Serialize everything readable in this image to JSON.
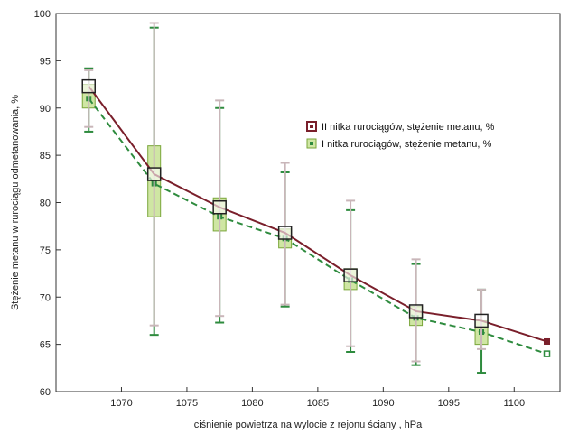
{
  "chart_data": {
    "type": "line",
    "xlabel": "ciśnienie powietrza na wylocie z rejonu ściany , hPa",
    "ylabel": "Stężenie metanu w rurociągu odmetanowania, %",
    "xlim": [
      1065,
      1103.5
    ],
    "ylim": [
      60,
      100
    ],
    "xticks": [
      1070,
      1075,
      1080,
      1085,
      1090,
      1095,
      1100
    ],
    "yticks": [
      60,
      65,
      70,
      75,
      80,
      85,
      90,
      95,
      100
    ],
    "grid": false,
    "legend_position": "right",
    "series": [
      {
        "name": "II nitka rurociągów, stężenie metanu, %",
        "color": "#7a1f2b",
        "line_style": "solid",
        "marker": "square-open",
        "points": [
          {
            "x": 1067.5,
            "y": 92.3,
            "whisker_low": 88.0,
            "whisker_high": 94.0
          },
          {
            "x": 1072.5,
            "y": 83.0,
            "whisker_low": 67.0,
            "whisker_high": 99.0
          },
          {
            "x": 1077.5,
            "y": 79.5,
            "whisker_low": 68.0,
            "whisker_high": 90.8
          },
          {
            "x": 1082.5,
            "y": 76.8,
            "whisker_low": 69.2,
            "whisker_high": 84.2
          },
          {
            "x": 1087.5,
            "y": 72.3,
            "whisker_low": 64.8,
            "whisker_high": 80.2
          },
          {
            "x": 1092.5,
            "y": 68.5,
            "whisker_low": 63.2,
            "whisker_high": 74.0
          },
          {
            "x": 1097.5,
            "y": 67.5,
            "whisker_low": 64.5,
            "whisker_high": 70.8
          },
          {
            "x": 1102.5,
            "y": 65.3
          }
        ]
      },
      {
        "name": "I nitka rurociągów, stężenie metanu, %",
        "color": "#2e8b3e",
        "line_style": "dashed",
        "marker": "square-filled",
        "points": [
          {
            "x": 1067.5,
            "y": 91.0,
            "box_low": 90.0,
            "box_high": 92.5,
            "whisker_low": 87.5,
            "whisker_high": 94.2
          },
          {
            "x": 1072.5,
            "y": 82.0,
            "box_low": 78.5,
            "box_high": 86.0,
            "whisker_low": 66.0,
            "whisker_high": 98.5
          },
          {
            "x": 1077.5,
            "y": 78.5,
            "box_low": 77.0,
            "box_high": 80.5,
            "whisker_low": 67.3,
            "whisker_high": 90.0
          },
          {
            "x": 1082.5,
            "y": 76.2,
            "box_low": 75.2,
            "box_high": 77.2,
            "whisker_low": 69.0,
            "whisker_high": 83.2
          },
          {
            "x": 1087.5,
            "y": 71.8,
            "box_low": 70.8,
            "box_high": 73.0,
            "whisker_low": 64.2,
            "whisker_high": 79.2
          },
          {
            "x": 1092.5,
            "y": 67.8,
            "box_low": 67.0,
            "box_high": 69.0,
            "whisker_low": 62.8,
            "whisker_high": 73.5
          },
          {
            "x": 1097.5,
            "y": 66.3,
            "box_low": 65.0,
            "box_high": 67.5,
            "whisker_low": 62.0,
            "whisker_high": 70.8
          },
          {
            "x": 1102.5,
            "y": 64.0
          }
        ]
      }
    ]
  }
}
